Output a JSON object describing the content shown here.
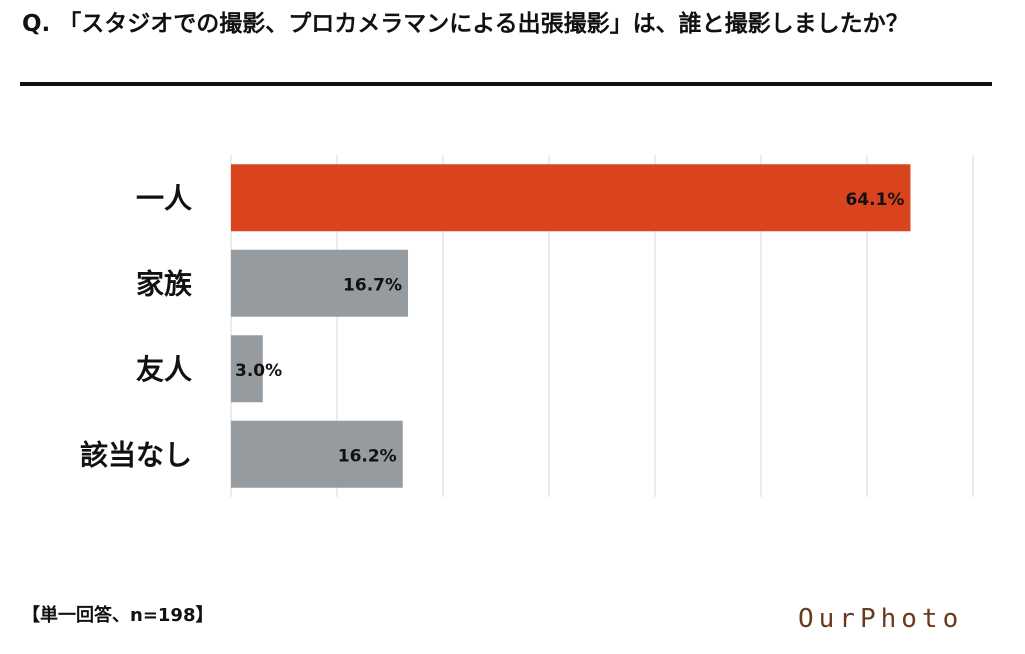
{
  "question": "Q. 「スタジオでの撮影、プロカメラマンによる出張撮影」は、誰と撮影しましたか？",
  "footnote": "【単一回答、n=198】",
  "logo": "OurPhoto",
  "colors": {
    "highlight": "#d9441f",
    "bar": "#969b9f",
    "grid": "#d9d9d9",
    "rule": "#111111",
    "logo": "#6b3a1e"
  },
  "chart_data": {
    "type": "bar",
    "orientation": "horizontal",
    "categories": [
      "一人",
      "家族",
      "友人",
      "該当なし"
    ],
    "values": [
      64.1,
      16.7,
      3.0,
      16.2
    ],
    "value_labels": [
      "64.1%",
      "16.7%",
      "3.0%",
      "16.2%"
    ],
    "highlight_index": 0,
    "xlim": [
      0,
      70
    ],
    "grid": true,
    "title": "",
    "xlabel": "",
    "ylabel": ""
  }
}
